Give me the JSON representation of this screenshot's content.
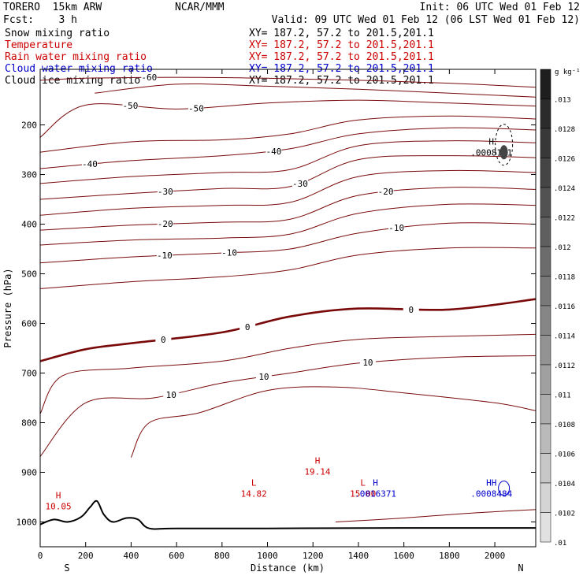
{
  "header": {
    "model": "TORERO  15km ARW",
    "center": "NCAR/MMM",
    "fcst": "Fcst:    3 h",
    "init": "Init: 06 UTC Wed 01 Feb 12",
    "valid": "Valid: 09 UTC Wed 01 Feb 12 (06 LST Wed 01 Feb 12)"
  },
  "fields": [
    {
      "name": "Snow mixing ratio",
      "xy": "XY= 187.2, 57.2 to 201.5,201.1",
      "color": "#000000"
    },
    {
      "name": "Temperature",
      "xy": "XY= 187.2, 57.2 to 201.5,201.1",
      "color": "#cc0000"
    },
    {
      "name": "Rain water mixing ratio",
      "xy": "XY= 187.2, 57.2 to 201.5,201.1",
      "color": "#cc0000"
    },
    {
      "name": "Cloud water mixing ratio",
      "xy": "XY= 187.2, 57.2 to 201.5,201.1",
      "color": "#0000cc"
    },
    {
      "name": "Cloud ice mixing ratio",
      "xy": "XY= 187.2, 57.2 to 201.5,201.1",
      "color": "#000000"
    }
  ],
  "chart_data": {
    "type": "contour",
    "xlabel": "Distance (km)",
    "ylabel": "Pressure (hPa)",
    "xlim": [
      0,
      2180
    ],
    "ylim": [
      1050,
      88
    ],
    "x_ticks": [
      0,
      200,
      400,
      600,
      800,
      1000,
      1200,
      1400,
      1600,
      1800,
      2000
    ],
    "y_ticks": [
      200,
      300,
      400,
      500,
      600,
      700,
      800,
      900,
      1000
    ],
    "left_end": "S",
    "right_end": "N",
    "temperature_isotherms": [
      {
        "level": -60,
        "points": [
          [
            0,
            110
          ],
          [
            200,
            106
          ],
          [
            600,
            104
          ],
          [
            1000,
            106
          ],
          [
            1400,
            110
          ],
          [
            1800,
            116
          ],
          [
            2180,
            124
          ]
        ]
      },
      {
        "level": -55,
        "points": [
          [
            240,
            136
          ],
          [
            600,
            118
          ],
          [
            1000,
            122
          ],
          [
            1400,
            128
          ],
          [
            1800,
            136
          ],
          [
            2180,
            144
          ]
        ]
      },
      {
        "level": -50,
        "points": [
          [
            0,
            225
          ],
          [
            200,
            160
          ],
          [
            600,
            168
          ],
          [
            1000,
            156
          ],
          [
            1400,
            150
          ],
          [
            1800,
            156
          ],
          [
            2180,
            162
          ]
        ]
      },
      {
        "level": -45,
        "points": [
          [
            0,
            255
          ],
          [
            400,
            234
          ],
          [
            800,
            230
          ],
          [
            1100,
            218
          ],
          [
            1400,
            190
          ],
          [
            1800,
            182
          ],
          [
            2180,
            188
          ]
        ]
      },
      {
        "level": -40,
        "points": [
          [
            0,
            288
          ],
          [
            400,
            272
          ],
          [
            800,
            262
          ],
          [
            1100,
            248
          ],
          [
            1400,
            218
          ],
          [
            1800,
            206
          ],
          [
            2180,
            210
          ]
        ]
      },
      {
        "level": -35,
        "points": [
          [
            0,
            318
          ],
          [
            400,
            304
          ],
          [
            800,
            296
          ],
          [
            1100,
            290
          ],
          [
            1400,
            242
          ],
          [
            1800,
            232
          ],
          [
            2180,
            236
          ]
        ]
      },
      {
        "level": -30,
        "points": [
          [
            0,
            350
          ],
          [
            400,
            338
          ],
          [
            800,
            328
          ],
          [
            1100,
            324
          ],
          [
            1400,
            270
          ],
          [
            1800,
            262
          ],
          [
            2180,
            266
          ]
        ]
      },
      {
        "level": -25,
        "points": [
          [
            0,
            382
          ],
          [
            400,
            368
          ],
          [
            800,
            362
          ],
          [
            1100,
            356
          ],
          [
            1400,
            304
          ],
          [
            1800,
            292
          ],
          [
            2180,
            296
          ]
        ]
      },
      {
        "level": -20,
        "points": [
          [
            0,
            412
          ],
          [
            400,
            402
          ],
          [
            800,
            396
          ],
          [
            1100,
            390
          ],
          [
            1400,
            342
          ],
          [
            1800,
            326
          ],
          [
            2180,
            330
          ]
        ]
      },
      {
        "level": -15,
        "points": [
          [
            0,
            442
          ],
          [
            400,
            432
          ],
          [
            800,
            428
          ],
          [
            1100,
            420
          ],
          [
            1400,
            378
          ],
          [
            1800,
            360
          ],
          [
            2180,
            362
          ]
        ]
      },
      {
        "level": -10,
        "points": [
          [
            0,
            478
          ],
          [
            400,
            466
          ],
          [
            800,
            458
          ],
          [
            1100,
            450
          ],
          [
            1400,
            418
          ],
          [
            1800,
            398
          ],
          [
            2180,
            400
          ]
        ]
      },
      {
        "level": -5,
        "points": [
          [
            0,
            530
          ],
          [
            400,
            516
          ],
          [
            800,
            506
          ],
          [
            1100,
            492
          ],
          [
            1400,
            462
          ],
          [
            1800,
            448
          ],
          [
            2180,
            448
          ]
        ]
      },
      {
        "level": 0,
        "points": [
          [
            0,
            676
          ],
          [
            200,
            652
          ],
          [
            400,
            640
          ],
          [
            800,
            618
          ],
          [
            1100,
            586
          ],
          [
            1400,
            570
          ],
          [
            1800,
            572
          ],
          [
            2180,
            551
          ]
        ]
      },
      {
        "level": 5,
        "points": [
          [
            0,
            782
          ],
          [
            100,
            705
          ],
          [
            400,
            690
          ],
          [
            800,
            676
          ],
          [
            1100,
            650
          ],
          [
            1400,
            632
          ],
          [
            1800,
            626
          ],
          [
            2180,
            622
          ]
        ]
      },
      {
        "level": 10,
        "points": [
          [
            0,
            868
          ],
          [
            200,
            760
          ],
          [
            500,
            750
          ],
          [
            800,
            720
          ],
          [
            1100,
            700
          ],
          [
            1400,
            680
          ],
          [
            1800,
            668
          ],
          [
            2180,
            665
          ]
        ]
      },
      {
        "level": 15,
        "points": [
          [
            400,
            870
          ],
          [
            480,
            800
          ],
          [
            700,
            780
          ],
          [
            1000,
            735
          ],
          [
            1300,
            728
          ],
          [
            1600,
            740
          ],
          [
            2000,
            760
          ],
          [
            2180,
            776
          ]
        ]
      },
      {
        "level": 20,
        "points": [
          [
            1300,
            1000
          ],
          [
            1600,
            992
          ],
          [
            1900,
            982
          ],
          [
            2180,
            975
          ]
        ]
      }
    ],
    "terrain": [
      [
        0,
        1005
      ],
      [
        60,
        995
      ],
      [
        120,
        1000
      ],
      [
        180,
        990
      ],
      [
        220,
        970
      ],
      [
        250,
        958
      ],
      [
        280,
        985
      ],
      [
        320,
        1000
      ],
      [
        380,
        992
      ],
      [
        430,
        995
      ],
      [
        480,
        1013
      ],
      [
        600,
        1013
      ],
      [
        1000,
        1013
      ],
      [
        1600,
        1012
      ],
      [
        2000,
        1012
      ],
      [
        2180,
        1012
      ]
    ],
    "extrema_labels": [
      {
        "kind": "H",
        "value": "10.05",
        "x": 80,
        "p": 965,
        "color": "#cc0000"
      },
      {
        "kind": "L",
        "value": "14.82",
        "x": 940,
        "p": 940,
        "color": "#cc0000"
      },
      {
        "kind": "H",
        "value": "19.14",
        "x": 1220,
        "p": 895,
        "color": "#cc0000"
      },
      {
        "kind": "L",
        "value": "15.00",
        "x": 1420,
        "p": 940,
        "color": "#cc0000"
      },
      {
        "kind": "H",
        "value": ".0016371",
        "x": 1475,
        "p": 940,
        "color": "#0000cc"
      },
      {
        "kind": "H",
        "value": ".0008151",
        "x": 1985,
        "p": 252,
        "color": "#000000"
      },
      {
        "kind": "HH",
        "value": ".0008484",
        "x": 1985,
        "p": 940,
        "color": "#0000cc"
      }
    ],
    "colorbar": {
      "unit": "g kg⁻¹",
      "labels": [
        ".013",
        ".0128",
        ".0126",
        ".0124",
        ".0122",
        ".012",
        ".0118",
        ".0116",
        ".0114",
        ".0112",
        ".011",
        ".0108",
        ".0106",
        ".0104",
        ".0102",
        ".01"
      ]
    }
  }
}
